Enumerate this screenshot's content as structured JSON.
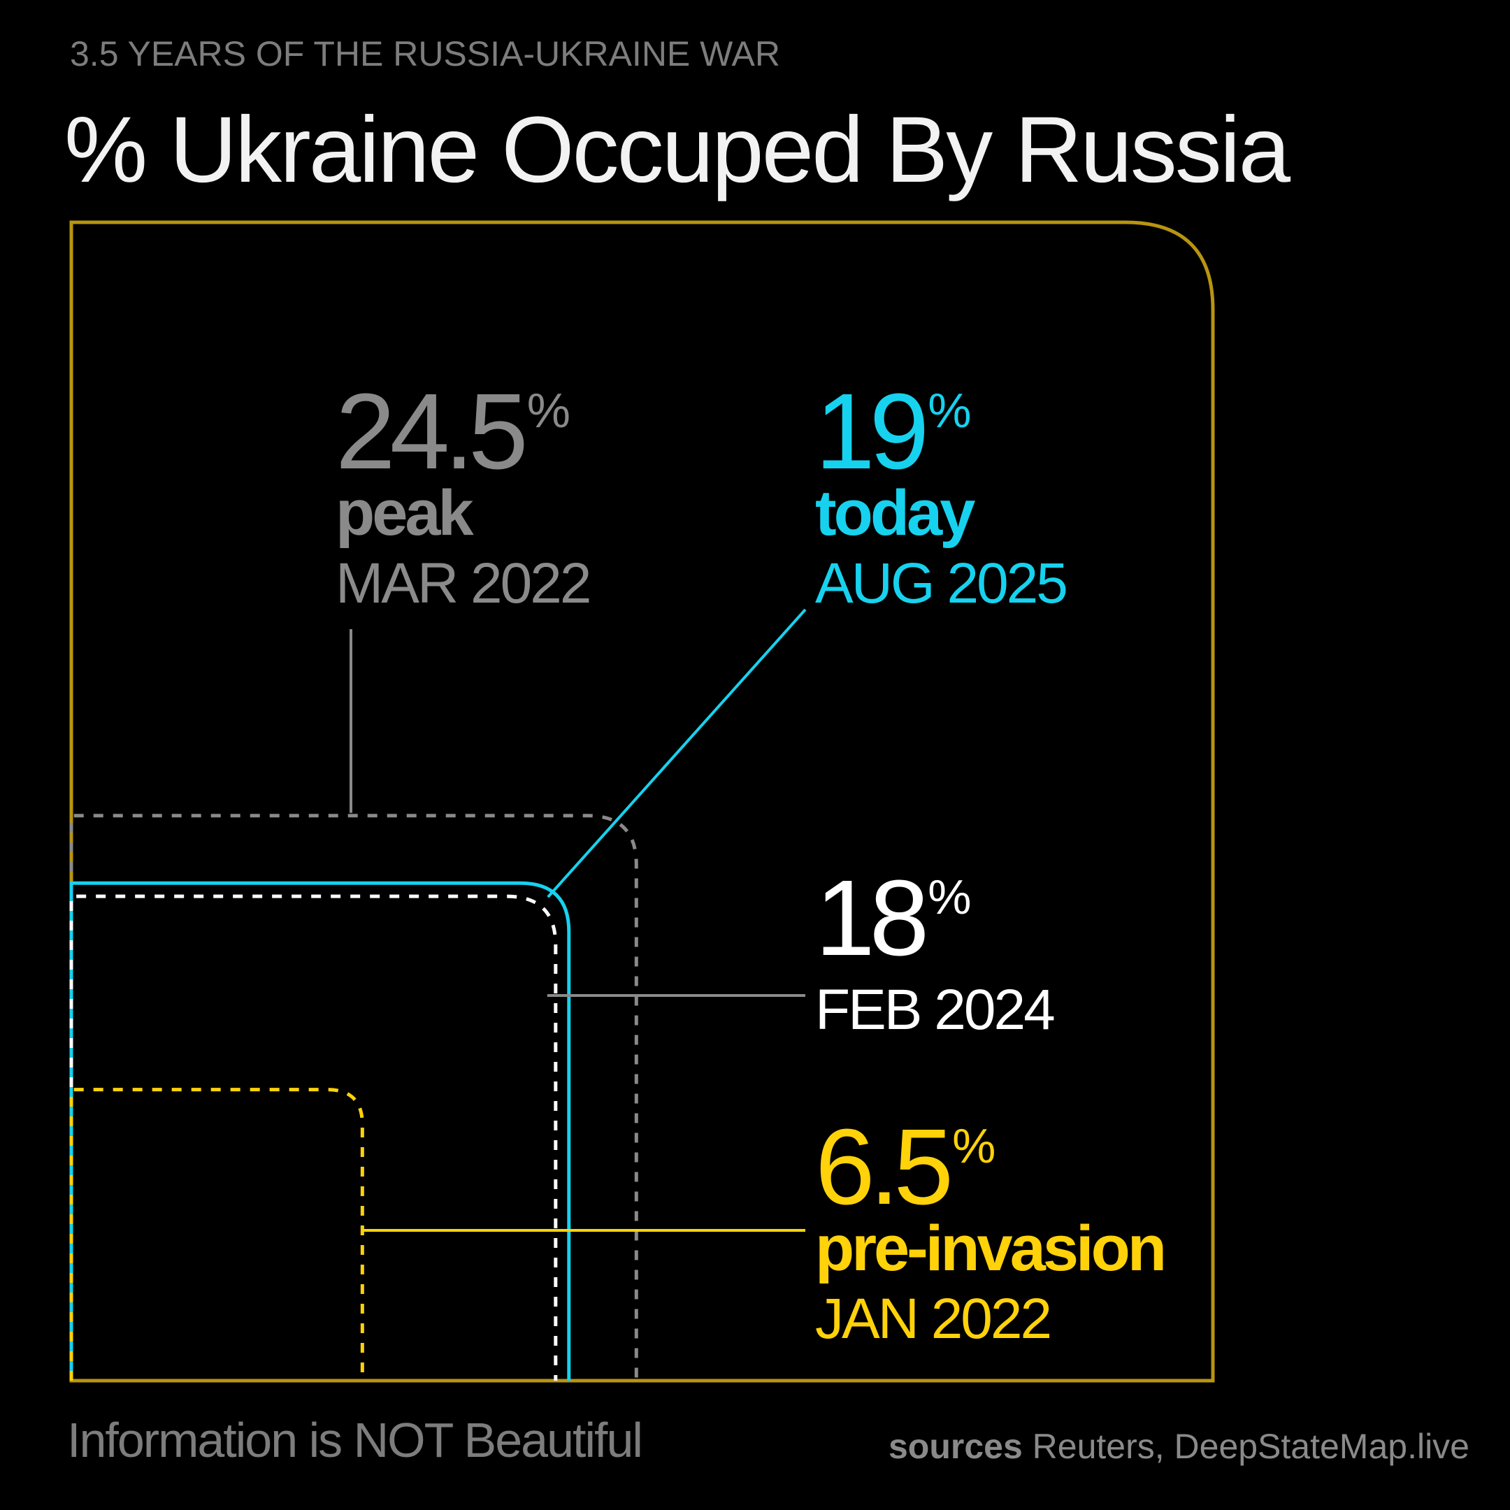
{
  "header": {
    "kicker": "3.5 YEARS OF THE RUSSIA-UKRAINE WAR",
    "title": "% Ukraine Occuped By Russia"
  },
  "footer": {
    "credit": "Information is NOT Beautiful",
    "sources_label": "sources",
    "sources_text": "Reuters, DeepStateMap.live"
  },
  "colors": {
    "background": "#000000",
    "frame": "#b8950f",
    "peak": "#8a8a8a",
    "today": "#17d2ee",
    "feb2024": "#ffffff",
    "pre_invasion": "#ffd20a"
  },
  "chart_data": {
    "type": "nested-area",
    "total": 100,
    "series": [
      {
        "key": "peak",
        "value": 24.5,
        "value_text": "24.5",
        "unit": "%",
        "word": "peak",
        "date": "MAR 2022",
        "color": "#8a8a8a",
        "style": "dashed"
      },
      {
        "key": "today",
        "value": 19,
        "value_text": "19",
        "unit": "%",
        "word": "today",
        "date": "AUG 2025",
        "color": "#17d2ee",
        "style": "solid"
      },
      {
        "key": "feb2024",
        "value": 18,
        "value_text": "18",
        "unit": "%",
        "word": "",
        "date": "FEB 2024",
        "color": "#ffffff",
        "style": "dashed"
      },
      {
        "key": "pre_invasion",
        "value": 6.5,
        "value_text": "6.5",
        "unit": "%",
        "word": "pre-invasion",
        "date": "JAN 2022",
        "color": "#ffd20a",
        "style": "dashed"
      }
    ]
  }
}
